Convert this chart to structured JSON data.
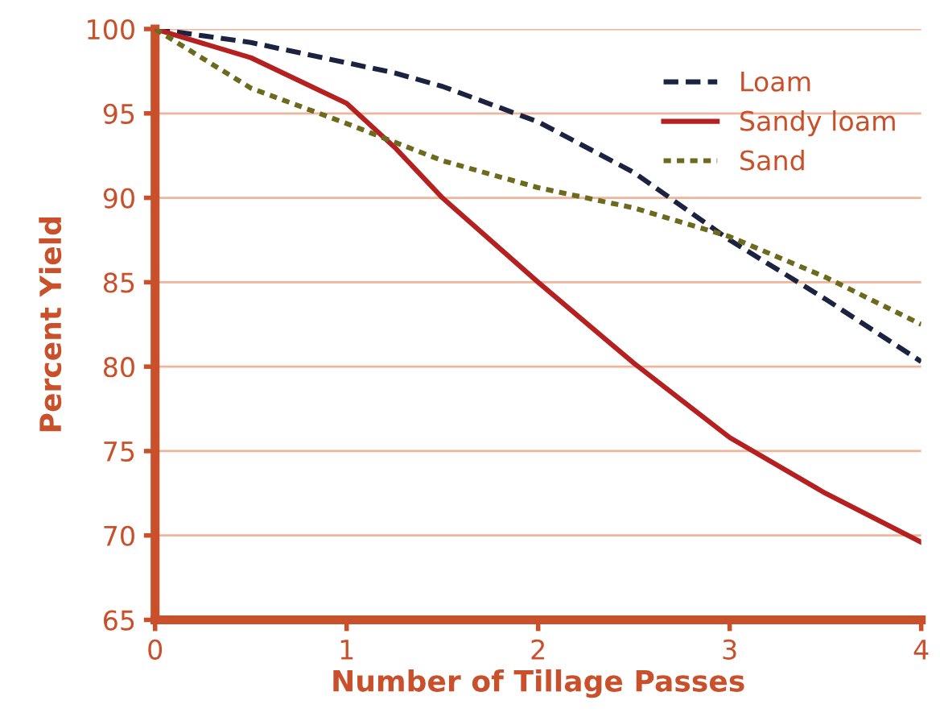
{
  "chart_data": {
    "type": "line",
    "xlabel": "Number of Tillage Passes",
    "ylabel": "Percent Yield",
    "x": [
      0,
      0.5,
      1,
      1.25,
      1.5,
      2,
      2.5,
      3,
      3.5,
      4
    ],
    "series": [
      {
        "name": "Loam",
        "color": "#1c2340",
        "line_style": "dashed",
        "values": [
          100,
          99.2,
          98,
          97.4,
          96.6,
          94.5,
          91.5,
          87.5,
          84,
          80.3
        ]
      },
      {
        "name": "Sandy loam",
        "color": "#b52020",
        "line_style": "solid",
        "values": [
          100,
          98.3,
          95.6,
          93,
          90,
          85,
          80.2,
          75.8,
          72.5,
          69.6
        ]
      },
      {
        "name": "Sand",
        "color": "#6b6a1e",
        "line_style": "dotted",
        "values": [
          100,
          96.5,
          94.4,
          93.3,
          92.2,
          90.6,
          89.4,
          87.7,
          85.3,
          82.5
        ]
      }
    ],
    "xlim": [
      0,
      4
    ],
    "xticks": [
      0,
      1,
      2,
      3,
      4
    ],
    "ylim": [
      65,
      100
    ],
    "yticks": [
      65,
      70,
      75,
      80,
      85,
      90,
      95,
      100
    ],
    "grid": "y",
    "legend": "top right",
    "marker": "none"
  }
}
